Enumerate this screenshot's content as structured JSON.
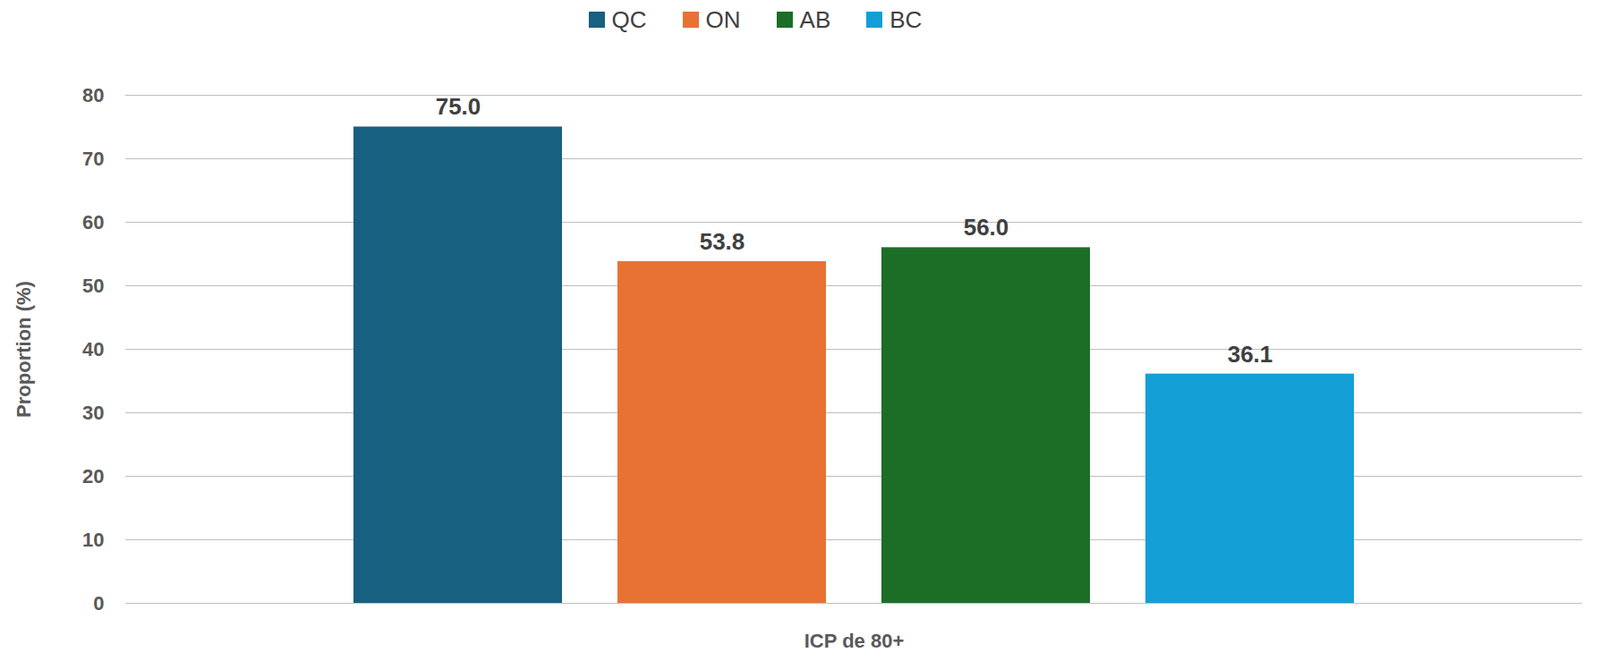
{
  "chart_data": {
    "type": "bar",
    "categories": [
      "ICP de 80+"
    ],
    "series": [
      {
        "name": "QC",
        "color": "#17607f",
        "values": [
          75.0
        ],
        "value_labels": [
          "75.0"
        ]
      },
      {
        "name": "ON",
        "color": "#e87234",
        "values": [
          53.8
        ],
        "value_labels": [
          "53.8"
        ]
      },
      {
        "name": "AB",
        "color": "#1c6e27",
        "values": [
          56.0
        ],
        "value_labels": [
          "56.0"
        ]
      },
      {
        "name": "BC",
        "color": "#139fd6",
        "values": [
          36.1
        ],
        "value_labels": [
          "36.1"
        ]
      }
    ],
    "ylabel": "Proportion (%)",
    "ylim": [
      0,
      80
    ],
    "yticks": [
      0,
      10,
      20,
      30,
      40,
      50,
      60,
      70,
      80
    ],
    "grid": true,
    "legend": "top",
    "data_labels": true
  }
}
